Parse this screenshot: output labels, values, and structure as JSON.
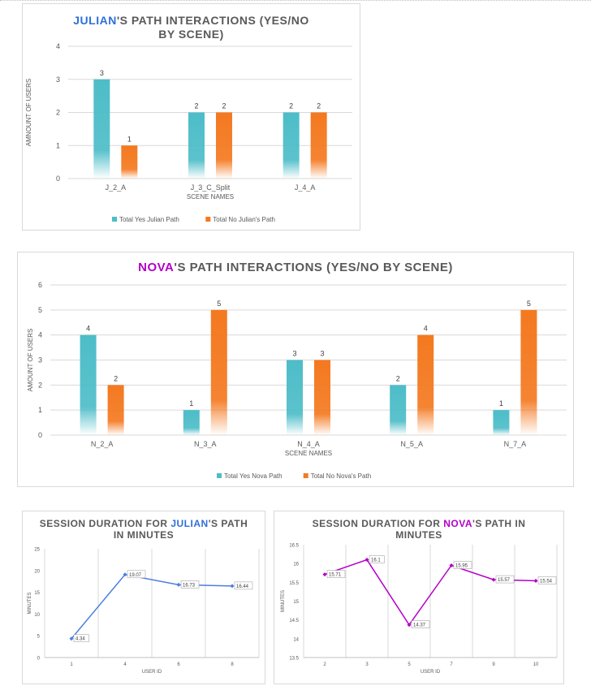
{
  "charts": [
    {
      "id": "julian_bar",
      "title_highlight": "JULIAN",
      "title_rest": "'S PATH INTERACTIONS (YES/NO BY SCENE)",
      "highlight_color": "#2e6fd8",
      "chart_data": {
        "type": "bar",
        "categories": [
          "J_2_A",
          "J_3_C_Split",
          "J_4_A"
        ],
        "series": [
          {
            "name": "Total Yes Julian Path",
            "values": [
              3,
              2,
              2
            ],
            "color": "#4dbdc8"
          },
          {
            "name": "Total No Julian's Path",
            "values": [
              1,
              2,
              2
            ],
            "color": "#f47920"
          }
        ],
        "title": "JULIAN'S PATH INTERACTIONS (YES/NO BY SCENE)",
        "xlabel": "SCENE NAMES",
        "ylabel": "AMNOUNT OF USERS",
        "ylim": [
          0,
          4
        ],
        "yticks": [
          "0",
          "1",
          "2",
          "3",
          "4"
        ],
        "grid": true,
        "legend": "bottom"
      }
    },
    {
      "id": "nova_bar",
      "title_highlight": "NOVA",
      "title_rest": "'S PATH INTERACTIONS (YES/NO BY SCENE)",
      "highlight_color": "#b400c8",
      "chart_data": {
        "type": "bar",
        "categories": [
          "N_2_A",
          "N_3_A",
          "N_4_A",
          "N_5_A",
          "N_7_A"
        ],
        "series": [
          {
            "name": "Total Yes Nova Path",
            "values": [
              4,
              1,
              3,
              2,
              1
            ],
            "color": "#4dbdc8"
          },
          {
            "name": "Total No Nova's Path",
            "values": [
              2,
              5,
              3,
              4,
              5
            ],
            "color": "#f47920"
          }
        ],
        "title": "NOVA'S PATH INTERACTIONS (YES/NO BY SCENE)",
        "xlabel": "SCENE NAMES",
        "ylabel": "AMOUNT OF USERS",
        "ylim": [
          0,
          6
        ],
        "yticks": [
          "0",
          "1",
          "2",
          "3",
          "4",
          "5",
          "6"
        ],
        "grid": true,
        "legend": "bottom"
      }
    },
    {
      "id": "julian_line",
      "title_prefix": "SESSION DURATION FOR ",
      "title_highlight": "JULIAN",
      "title_rest": "'S PATH IN MINUTES",
      "highlight_color": "#2e6fd8",
      "chart_data": {
        "type": "line",
        "categories": [
          "1",
          "4",
          "6",
          "8"
        ],
        "series": [
          {
            "name": "",
            "values": [
              4.34,
              19.07,
              16.73,
              16.44
            ],
            "labels": [
              "4.34",
              "19.07",
              "16.73",
              "16.44"
            ],
            "color": "#4a7fe0"
          }
        ],
        "title": "SESSION DURATION FOR JULIAN'S PATH IN MINUTES",
        "xlabel": "USER ID",
        "ylabel": "MINUTES",
        "ylim": [
          0,
          25
        ],
        "yticks": [
          "0",
          "5",
          "10",
          "15",
          "20",
          "25"
        ],
        "grid": true
      }
    },
    {
      "id": "nova_line",
      "title_prefix": "SESSION DURATION FOR ",
      "title_highlight": "NOVA",
      "title_rest": "'S PATH IN MINUTES",
      "highlight_color": "#b400c8",
      "chart_data": {
        "type": "line",
        "categories": [
          "2",
          "3",
          "5",
          "7",
          "9",
          "10"
        ],
        "series": [
          {
            "name": "",
            "values": [
              15.71,
              16.1,
              14.37,
              15.95,
              15.57,
              15.54
            ],
            "labels": [
              "15.71",
              "16.1",
              "14.37",
              "15.95",
              "15.57",
              "15.54"
            ],
            "color": "#b400c8"
          }
        ],
        "title": "SESSION DURATION FOR NOVA'S PATH IN MINUTES",
        "xlabel": "USER ID",
        "ylabel": "MINUTES",
        "ylim": [
          13.5,
          16.5
        ],
        "yticks": [
          "13.5",
          "14",
          "14.5",
          "15",
          "15.5",
          "16",
          "16.5"
        ],
        "grid": true
      }
    }
  ]
}
